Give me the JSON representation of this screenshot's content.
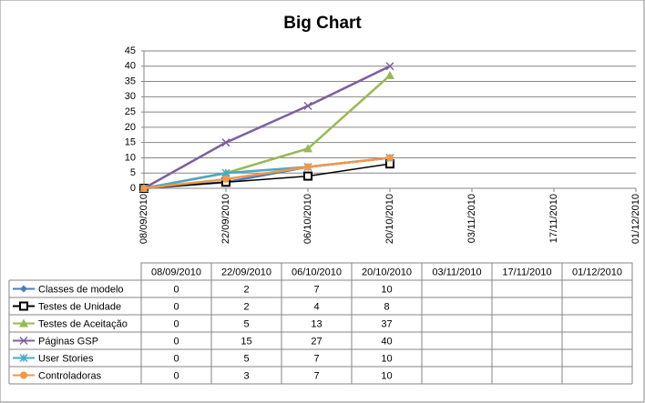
{
  "chart_data": {
    "type": "line",
    "title": "Big Chart",
    "categories": [
      "08/09/2010",
      "22/09/2010",
      "06/10/2010",
      "20/10/2010",
      "03/11/2010",
      "17/11/2010",
      "01/12/2010"
    ],
    "series": [
      {
        "name": "Classes de modelo",
        "color": "#4a7ebb",
        "marker": "diamond",
        "values": [
          0,
          2,
          7,
          10,
          null,
          null,
          null
        ]
      },
      {
        "name": "Testes de Unidade",
        "color": "#000000",
        "marker": "square",
        "values": [
          0,
          2,
          4,
          8,
          null,
          null,
          null
        ]
      },
      {
        "name": "Testes de Aceitação",
        "color": "#98b954",
        "marker": "triangle",
        "values": [
          0,
          5,
          13,
          37,
          null,
          null,
          null
        ]
      },
      {
        "name": "Páginas GSP",
        "color": "#7d60a0",
        "marker": "x",
        "values": [
          0,
          15,
          27,
          40,
          null,
          null,
          null
        ]
      },
      {
        "name": "User Stories",
        "color": "#46aac5",
        "marker": "star",
        "values": [
          0,
          5,
          7,
          10,
          null,
          null,
          null
        ]
      },
      {
        "name": "Controladoras",
        "color": "#f79646",
        "marker": "circle",
        "values": [
          0,
          3,
          7,
          10,
          null,
          null,
          null
        ]
      }
    ],
    "ylim": [
      0,
      45
    ],
    "yticks": [
      0,
      5,
      10,
      15,
      20,
      25,
      30,
      35,
      40,
      45
    ],
    "grid": true
  }
}
